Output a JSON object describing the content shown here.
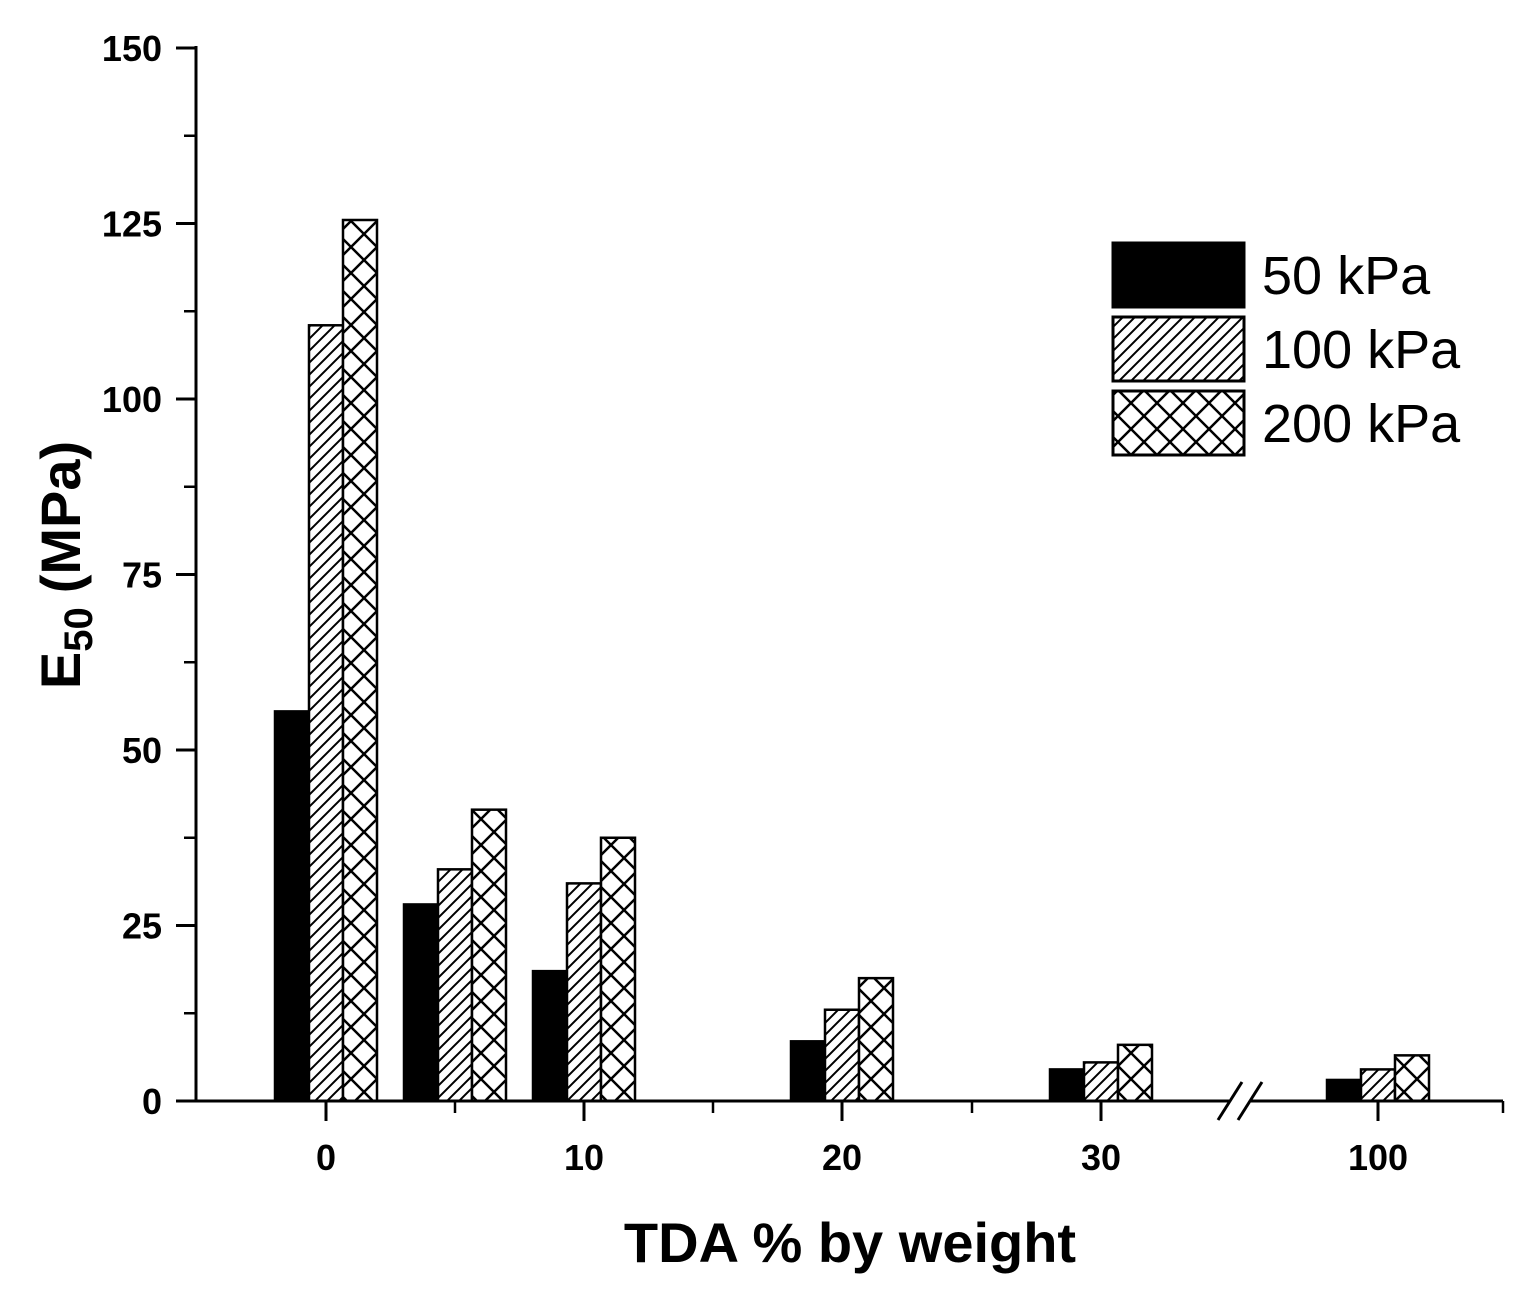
{
  "chart_data": {
    "type": "bar",
    "title": "",
    "xlabel": "TDA % by weight",
    "ylabel": {
      "main": "E",
      "sub": "50",
      "unit": "(MPa)"
    },
    "ylim": [
      0,
      150
    ],
    "yticks": [
      0,
      25,
      50,
      75,
      100,
      125,
      150
    ],
    "categories": [
      "0",
      "5",
      "10",
      "20",
      "30",
      "100"
    ],
    "xtick_labels": [
      "0",
      "10",
      "20",
      "30",
      "100"
    ],
    "axis_break_between": [
      "30",
      "100"
    ],
    "legend_position": "top-right",
    "series": [
      {
        "name": "50 kPa",
        "pattern": "solid",
        "color": "#000000",
        "values": [
          55.5,
          28,
          18.5,
          8.5,
          4.5,
          3
        ]
      },
      {
        "name": "100 kPa",
        "pattern": "diagonal",
        "color": "#000000",
        "values": [
          110.5,
          33,
          31,
          13,
          5.5,
          4.5
        ]
      },
      {
        "name": "200 kPa",
        "pattern": "crosshatch",
        "color": "#000000",
        "values": [
          125.5,
          41.5,
          37.5,
          17.5,
          8,
          6.5
        ]
      }
    ]
  }
}
